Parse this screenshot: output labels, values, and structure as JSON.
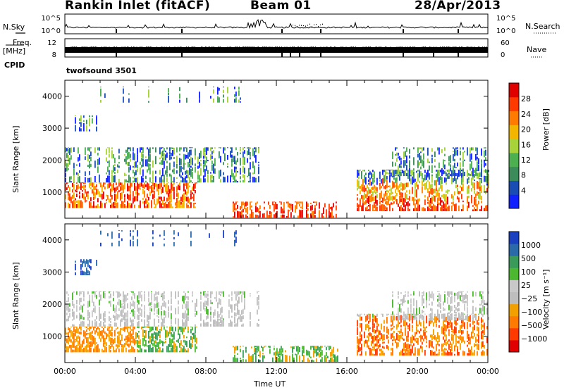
{
  "header": {
    "station": "Rankin Inlet (fitACF)",
    "beam": "Beam 01",
    "date": "28/Apr/2013"
  },
  "left_labels": {
    "nsky": "N.Sky",
    "freq": "Freq.",
    "freq_unit": "[MHz]",
    "cpid": "CPID"
  },
  "right_labels": {
    "nsearch": "N.Search",
    "nave": "Nave"
  },
  "cpid_value": "twofsound 3501",
  "colors": {
    "power_scale": [
      "#1020ff",
      "#1a4db3",
      "#3b8c5a",
      "#4caf50",
      "#a8d23a",
      "#f2b600",
      "#ff7a00",
      "#ff3a00",
      "#e00000"
    ],
    "velocity_scale": [
      "#e00000",
      "#ff3a00",
      "#ff7a00",
      "#f2a000",
      "#bdbdbd",
      "#c8c8c8",
      "#4cb830",
      "#3a9a5a",
      "#2a6aa8",
      "#1a40c0"
    ]
  },
  "chart_data": [
    {
      "type": "line",
      "name": "noise-panel",
      "ylabel": "N.Sky",
      "y_ticks_left": [
        "10^5",
        "10^0"
      ],
      "y_ticks_right": [
        "10^5",
        "10^0"
      ],
      "xlim": [
        0,
        24
      ]
    },
    {
      "type": "line",
      "name": "frequency-panel",
      "ylabel": "Freq. [MHz]",
      "y_ticks_left": [
        "12",
        "8"
      ],
      "y_ticks_right": [
        "60",
        "0"
      ],
      "xlim": [
        0,
        24
      ]
    },
    {
      "type": "heatmap",
      "name": "power",
      "title": "",
      "xlabel": "",
      "ylabel": "Slant Range [km]",
      "y_ticks": [
        "1000",
        "2000",
        "3000",
        "4000"
      ],
      "ylim": [
        180,
        4500
      ],
      "xlim": [
        0,
        24
      ],
      "colorbar_label": "Power [dB]",
      "colorbar_ticks": [
        "4",
        "8",
        "12",
        "16",
        "20",
        "24",
        "28"
      ]
    },
    {
      "type": "heatmap",
      "name": "velocity",
      "title": "",
      "xlabel": "Time UT",
      "ylabel": "Slant Range [km]",
      "y_ticks": [
        "1000",
        "2000",
        "3000",
        "4000"
      ],
      "x_ticks": [
        "00:00",
        "04:00",
        "08:00",
        "12:00",
        "16:00",
        "20:00",
        "00:00"
      ],
      "ylim": [
        180,
        4500
      ],
      "xlim": [
        0,
        24
      ],
      "colorbar_label": "Velocity [m s⁻¹]",
      "colorbar_ticks": [
        "1000",
        "500",
        "100",
        "25",
        "−25",
        "−100",
        "−500",
        "−1000"
      ]
    }
  ]
}
